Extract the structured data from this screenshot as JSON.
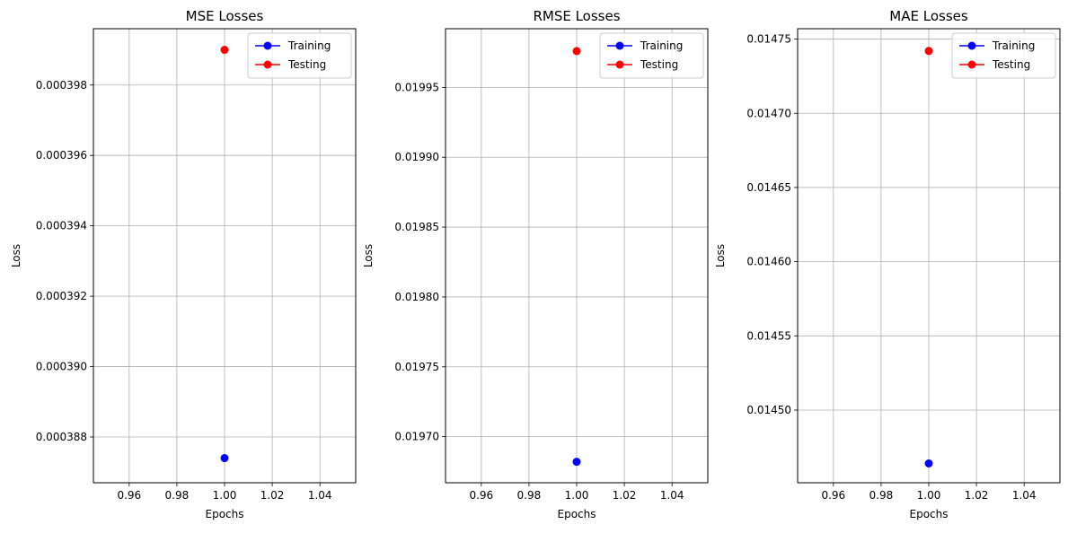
{
  "figure": {
    "background": "#ffffff",
    "grid_color": "#b0b0b0"
  },
  "chart_data": [
    {
      "type": "line",
      "title": "MSE Losses",
      "xlabel": "Epochs",
      "ylabel": "Loss",
      "xlim": [
        0.945,
        1.055
      ],
      "ylim": [
        0.0003867,
        0.0003996
      ],
      "xticks": [
        0.96,
        0.98,
        1.0,
        1.02,
        1.04
      ],
      "xtick_labels": [
        "0.96",
        "0.98",
        "1.00",
        "1.02",
        "1.04"
      ],
      "yticks": [
        0.000388,
        0.00039,
        0.000392,
        0.000394,
        0.000396,
        0.000398
      ],
      "ytick_labels": [
        "0.000388",
        "0.000390",
        "0.000392",
        "0.000394",
        "0.000396",
        "0.000398"
      ],
      "grid": true,
      "legend_position": "top-right",
      "series": [
        {
          "name": "Training",
          "color": "#0000ff",
          "marker": "circle",
          "x": [
            1.0
          ],
          "y": [
            0.0003874
          ]
        },
        {
          "name": "Testing",
          "color": "#ff0000",
          "marker": "circle",
          "x": [
            1.0
          ],
          "y": [
            0.000399
          ]
        }
      ]
    },
    {
      "type": "line",
      "title": "RMSE Losses",
      "xlabel": "Epochs",
      "ylabel": "Loss",
      "xlim": [
        0.945,
        1.055
      ],
      "ylim": [
        0.019667,
        0.019992
      ],
      "xticks": [
        0.96,
        0.98,
        1.0,
        1.02,
        1.04
      ],
      "xtick_labels": [
        "0.96",
        "0.98",
        "1.00",
        "1.02",
        "1.04"
      ],
      "yticks": [
        0.0197,
        0.01975,
        0.0198,
        0.01985,
        0.0199,
        0.01995
      ],
      "ytick_labels": [
        "0.01970",
        "0.01975",
        "0.01980",
        "0.01985",
        "0.01990",
        "0.01995"
      ],
      "grid": true,
      "legend_position": "top-right",
      "series": [
        {
          "name": "Training",
          "color": "#0000ff",
          "marker": "circle",
          "x": [
            1.0
          ],
          "y": [
            0.019682
          ]
        },
        {
          "name": "Testing",
          "color": "#ff0000",
          "marker": "circle",
          "x": [
            1.0
          ],
          "y": [
            0.019976
          ]
        }
      ]
    },
    {
      "type": "line",
      "title": "MAE Losses",
      "xlabel": "Epochs",
      "ylabel": "Loss",
      "xlim": [
        0.945,
        1.055
      ],
      "ylim": [
        0.014451,
        0.014757
      ],
      "xticks": [
        0.96,
        0.98,
        1.0,
        1.02,
        1.04
      ],
      "xtick_labels": [
        "0.96",
        "0.98",
        "1.00",
        "1.02",
        "1.04"
      ],
      "yticks": [
        0.0145,
        0.01455,
        0.0146,
        0.01465,
        0.0147,
        0.01475
      ],
      "ytick_labels": [
        "0.01450",
        "0.01455",
        "0.01460",
        "0.01465",
        "0.01470",
        "0.01475"
      ],
      "grid": true,
      "legend_position": "top-right",
      "series": [
        {
          "name": "Training",
          "color": "#0000ff",
          "marker": "circle",
          "x": [
            1.0
          ],
          "y": [
            0.014464
          ]
        },
        {
          "name": "Testing",
          "color": "#ff0000",
          "marker": "circle",
          "x": [
            1.0
          ],
          "y": [
            0.014742
          ]
        }
      ]
    }
  ]
}
